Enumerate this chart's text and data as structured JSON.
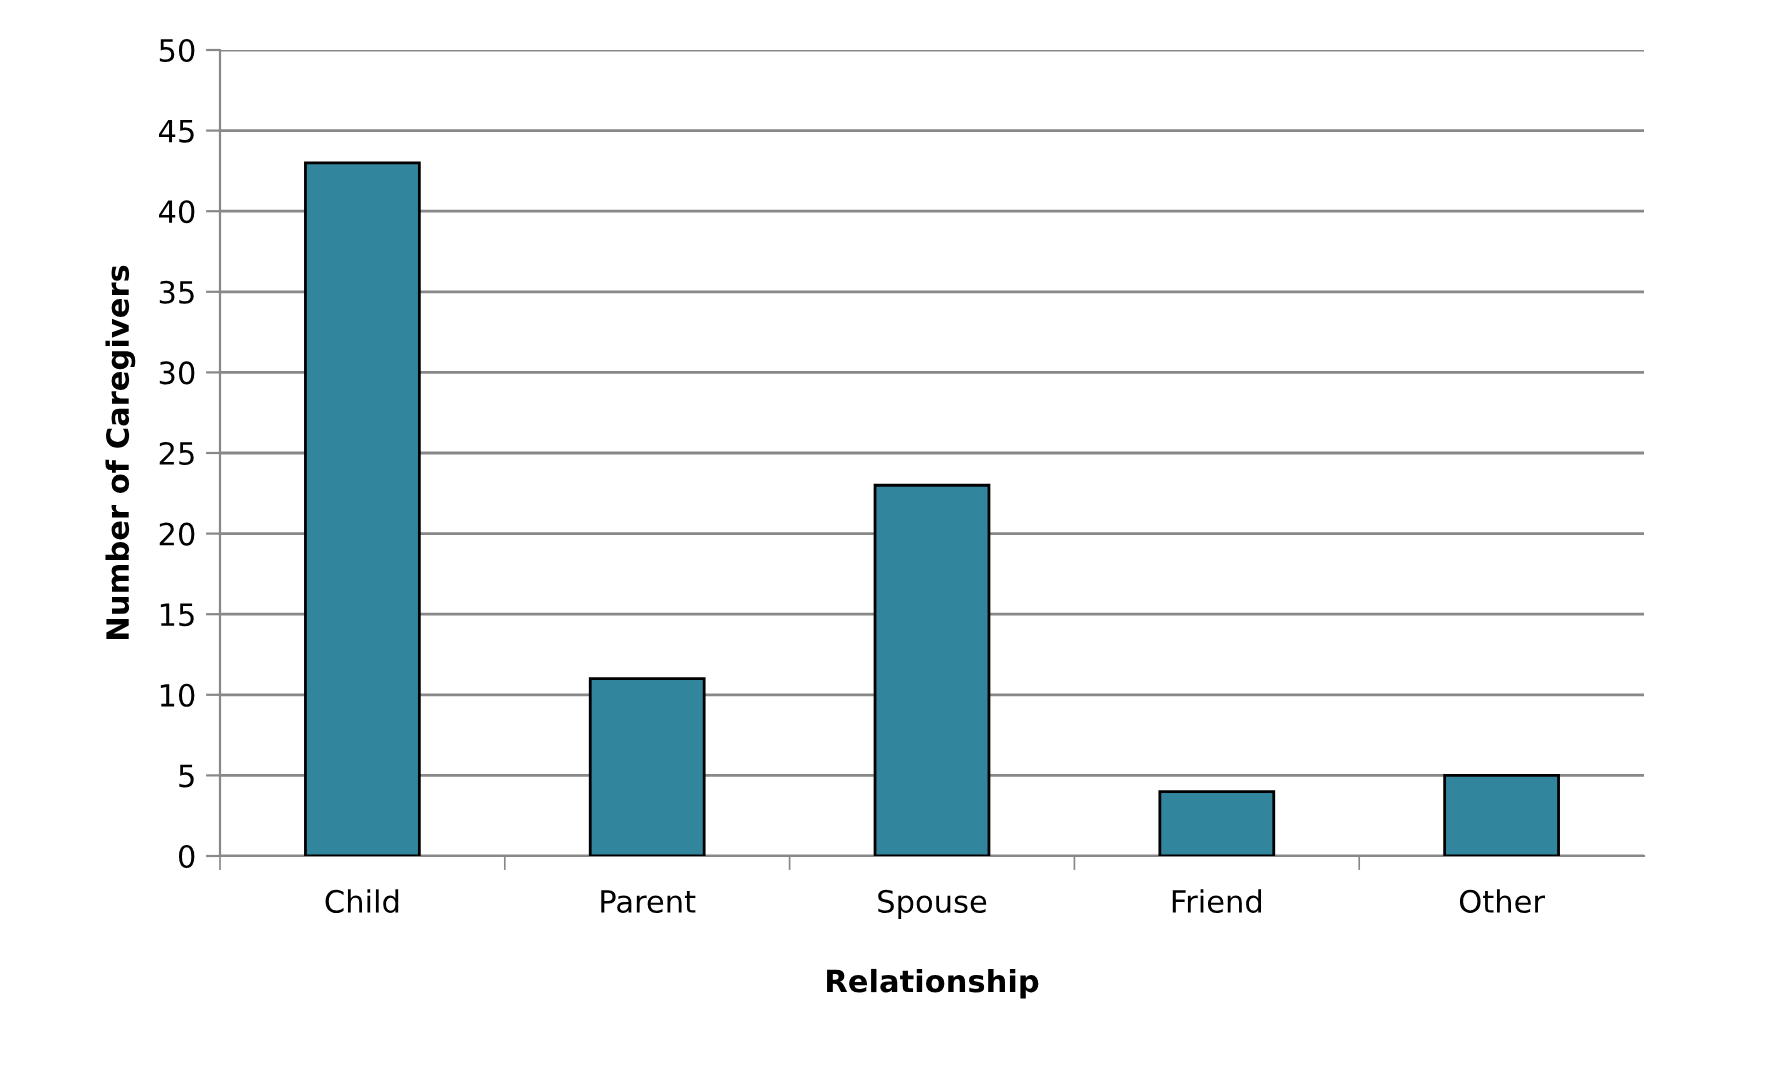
{
  "chart_data": {
    "type": "bar",
    "xlabel": "Relationship",
    "ylabel": "Number of Caregivers",
    "categories": [
      "Child",
      "Parent",
      "Spouse",
      "Friend",
      "Other"
    ],
    "values": [
      43,
      11,
      23,
      4,
      5
    ],
    "color": "#31859c",
    "ylim": [
      0,
      50
    ],
    "yticks": [
      0,
      5,
      10,
      15,
      20,
      25,
      30,
      35,
      40,
      45,
      50
    ],
    "grid": "y",
    "legend": false
  }
}
